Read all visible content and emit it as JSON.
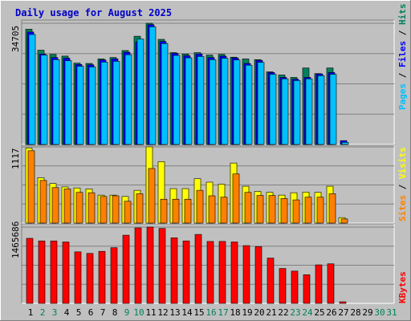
{
  "chart_data": [
    {
      "type": "bar",
      "title": "Daily usage for August 2025",
      "ymax_label": "34705",
      "ylim": [
        0,
        34705
      ],
      "grid": true,
      "legend": [
        "Pages",
        "Files",
        "Hits"
      ],
      "legend_position": "right-vertical",
      "categories": [
        "1",
        "2",
        "3",
        "4",
        "5",
        "6",
        "7",
        "8",
        "9",
        "10",
        "11",
        "12",
        "13",
        "14",
        "15",
        "16",
        "17",
        "18",
        "19",
        "20",
        "21",
        "22",
        "23",
        "24",
        "25",
        "26",
        "27",
        "28",
        "29",
        "30",
        "31"
      ],
      "series": [
        {
          "name": "Hits",
          "values": [
            33000,
            27000,
            25800,
            25300,
            23300,
            23200,
            24500,
            24900,
            26900,
            31000,
            34705,
            30100,
            26300,
            25900,
            26300,
            25600,
            25800,
            25000,
            24500,
            24300,
            20800,
            19900,
            19200,
            21900,
            20300,
            21900,
            null,
            null,
            null,
            null,
            null
          ]
        },
        {
          "name": "Files",
          "values": [
            32200,
            25900,
            24900,
            24700,
            22900,
            22800,
            24200,
            24500,
            26400,
            29300,
            34300,
            29500,
            26100,
            25400,
            25900,
            24900,
            25300,
            24800,
            23200,
            24100,
            20600,
            19200,
            18700,
            19200,
            20200,
            20600,
            1100,
            null,
            null,
            null,
            null
          ]
        },
        {
          "name": "Pages",
          "values": [
            31500,
            25600,
            24300,
            24000,
            22400,
            22200,
            23600,
            23800,
            25700,
            30200,
            33700,
            28900,
            25500,
            24800,
            25200,
            24300,
            24700,
            24200,
            22700,
            23500,
            20100,
            18800,
            18300,
            18800,
            19700,
            20100,
            600,
            null,
            null,
            null,
            null
          ]
        }
      ]
    },
    {
      "type": "bar",
      "ymax_label": "1117",
      "ylim": [
        0,
        1117
      ],
      "grid": true,
      "legend": [
        "Sites",
        "Visits"
      ],
      "legend_position": "right-vertical",
      "categories": [
        "1",
        "2",
        "3",
        "4",
        "5",
        "6",
        "7",
        "8",
        "9",
        "10",
        "11",
        "12",
        "13",
        "14",
        "15",
        "16",
        "17",
        "18",
        "19",
        "20",
        "21",
        "22",
        "23",
        "24",
        "25",
        "26",
        "27",
        "28",
        "29",
        "30",
        "31"
      ],
      "series": [
        {
          "name": "Visits",
          "values": [
            1100,
            665,
            580,
            530,
            515,
            500,
            410,
            410,
            390,
            480,
            1117,
            900,
            505,
            505,
            650,
            600,
            570,
            880,
            540,
            465,
            450,
            410,
            445,
            455,
            450,
            540,
            80,
            null,
            null,
            null,
            null
          ]
        },
        {
          "name": "Sites",
          "values": [
            1060,
            625,
            520,
            500,
            450,
            445,
            390,
            400,
            320,
            430,
            800,
            350,
            350,
            350,
            480,
            400,
            380,
            720,
            450,
            405,
            405,
            360,
            340,
            380,
            380,
            430,
            60,
            null,
            null,
            null,
            null
          ]
        }
      ]
    },
    {
      "type": "bar",
      "ymax_label": "1465686",
      "ylim": [
        0,
        1465686
      ],
      "grid": true,
      "legend": [
        "KBytes"
      ],
      "legend_position": "right-vertical",
      "categories": [
        "1",
        "2",
        "3",
        "4",
        "5",
        "6",
        "7",
        "8",
        "9",
        "10",
        "11",
        "12",
        "13",
        "14",
        "15",
        "16",
        "17",
        "18",
        "19",
        "20",
        "21",
        "22",
        "23",
        "24",
        "25",
        "26",
        "27",
        "28",
        "29",
        "30",
        "31"
      ],
      "series": [
        {
          "name": "KBytes",
          "values": [
            1250000,
            1200000,
            1200000,
            1180000,
            990000,
            960000,
            1000000,
            1070000,
            1310000,
            1450000,
            1465686,
            1440000,
            1260000,
            1200000,
            1325000,
            1190000,
            1190000,
            1180000,
            1110000,
            1090000,
            870000,
            670000,
            620000,
            550000,
            740000,
            760000,
            30000,
            null,
            null,
            null,
            null
          ]
        }
      ]
    }
  ],
  "x_labels": {
    "days": [
      "1",
      "2",
      "3",
      "4",
      "5",
      "6",
      "7",
      "8",
      "9",
      "10",
      "11",
      "12",
      "13",
      "14",
      "15",
      "16",
      "17",
      "18",
      "19",
      "20",
      "21",
      "22",
      "23",
      "24",
      "25",
      "26",
      "27",
      "28",
      "29",
      "30",
      "31"
    ],
    "weekend_days": [
      "2",
      "3",
      "9",
      "10",
      "16",
      "17",
      "23",
      "24",
      "30",
      "31"
    ]
  },
  "colors": {
    "background": "#c0c0c0",
    "plot_bg": "#c0c0c0",
    "grid": "#808080",
    "title": "#0000cc",
    "hits": "#00805c",
    "files": "#0000ff",
    "pages": "#00c0ff",
    "visits": "#ffff00",
    "sites": "#ff8000",
    "kbytes": "#ff0000",
    "weekday_label": "#000000",
    "weekend_label": "#00805c"
  }
}
